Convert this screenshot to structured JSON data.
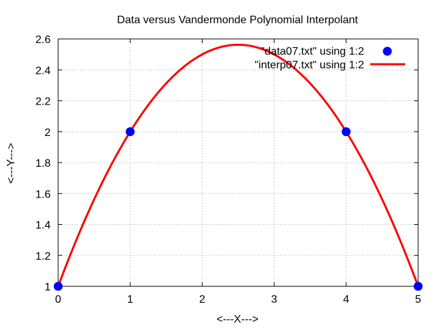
{
  "chart_data": {
    "type": "line",
    "title": "Data versus Vandermonde Polynomial Interpolant",
    "xlabel": "<---X--->",
    "ylabel": "<---Y--->",
    "xlim": [
      0,
      5
    ],
    "ylim": [
      1,
      2.6
    ],
    "x_ticks": [
      "0",
      "1",
      "2",
      "3",
      "4",
      "5"
    ],
    "y_ticks": [
      "1",
      "1.2",
      "1.4",
      "1.6",
      "1.8",
      "2",
      "2.2",
      "2.4",
      "2.6"
    ],
    "grid": true,
    "legend_position": "top-right",
    "series": [
      {
        "name": "\"data07.txt\" using 1:2",
        "style": "points",
        "color": "#0000ff",
        "x": [
          0,
          1,
          4,
          5
        ],
        "y": [
          1,
          2,
          2,
          1
        ]
      },
      {
        "name": "\"interp07.txt\" using 1:2",
        "style": "line",
        "color": "#ff0000",
        "polynomial_coefficients": [
          1,
          1.25,
          -0.25
        ],
        "x_range": [
          0,
          5
        ]
      }
    ]
  }
}
